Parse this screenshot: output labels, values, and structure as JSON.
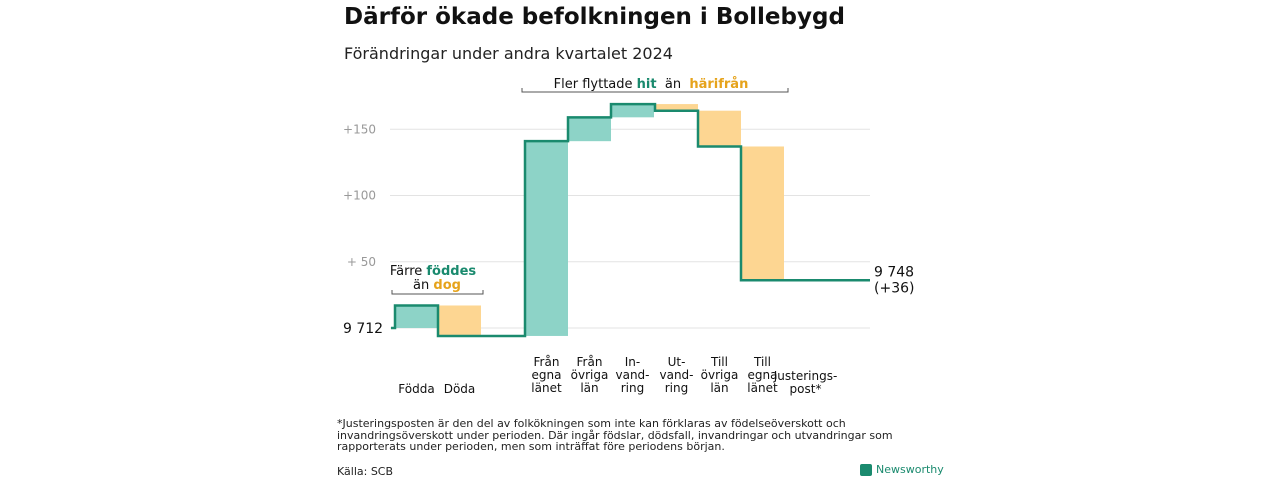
{
  "title": "Därför ökade befolkningen i Bollebygd",
  "subtitle": "Förändringar under andra kvartalet 2024",
  "colors": {
    "positive": "#8dd3c7",
    "negative": "#fdd692",
    "line": "#1a8a6e",
    "accent_neg": "#e6a31b",
    "grid": "#e3e3e3"
  },
  "chart_data": {
    "type": "waterfall",
    "baseline_label": "9 712",
    "baseline_value": 9712,
    "end_value_label": "9 748",
    "end_change_label": "(+36)",
    "y_ticks": [
      {
        "value": 50,
        "label": "+  50"
      },
      {
        "value": 100,
        "label": "+100"
      },
      {
        "value": 150,
        "label": "+150"
      }
    ],
    "steps": [
      {
        "category": "Födda",
        "label_lines": [
          "Födda"
        ],
        "delta": 17,
        "cumulative": 17
      },
      {
        "category": "Döda",
        "label_lines": [
          "Döda"
        ],
        "delta": -23,
        "cumulative": -6
      },
      {
        "category": "Från egna länet",
        "label_lines": [
          "Från",
          "egna",
          "länet"
        ],
        "delta": 147,
        "cumulative": 141
      },
      {
        "category": "Från övriga län",
        "label_lines": [
          "Från",
          "övriga",
          "län"
        ],
        "delta": 18,
        "cumulative": 159
      },
      {
        "category": "Invandring",
        "label_lines": [
          "In-",
          "vand-",
          "ring"
        ],
        "delta": 10,
        "cumulative": 169
      },
      {
        "category": "Utvandring",
        "label_lines": [
          "Ut-",
          "vand-",
          "ring"
        ],
        "delta": -5,
        "cumulative": 164
      },
      {
        "category": "Till övriga län",
        "label_lines": [
          "Till",
          "övriga",
          "län"
        ],
        "delta": -27,
        "cumulative": 137
      },
      {
        "category": "Till egna länet",
        "label_lines": [
          "Till",
          "egna",
          "länet"
        ],
        "delta": -101,
        "cumulative": 36
      },
      {
        "category": "Justeringspost*",
        "label_lines": [
          "Justerings-",
          "post*"
        ],
        "delta": 0,
        "cumulative": 36
      }
    ],
    "annotations": {
      "birth": {
        "prefix": "Färre",
        "pos_word": "föddes",
        "line2_prefix": "än",
        "neg_word": "dog"
      },
      "migration": {
        "prefix": "Fler flyttade",
        "pos_word": "hit",
        "middle": "än",
        "neg_word": "härifrån"
      }
    }
  },
  "footnote": "*Justeringsposten är den del av folkökningen som inte kan förklaras av födelseöverskott och invandringsöverskott under perioden. Där ingår födslar, dödsfall, invandringar och utvandringar som rapporterats under perioden, men som inträffat före periodens början.",
  "source": "Källa: SCB",
  "brand": "Newsworthy"
}
